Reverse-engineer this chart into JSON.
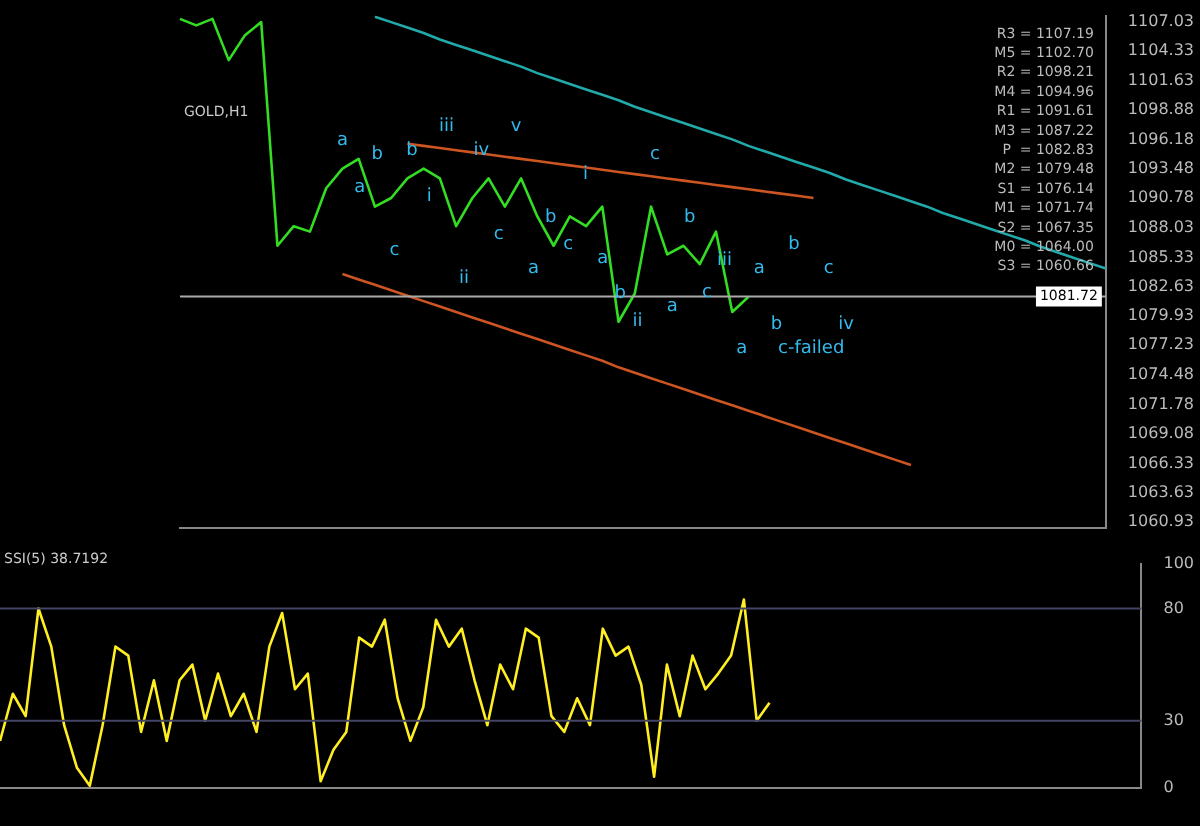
{
  "chart_data": [
    {
      "type": "line",
      "title": "GOLD,H1",
      "ylim": [
        1060.4,
        1107.6
      ],
      "tick_labels": "y",
      "legend": false,
      "marker": "none",
      "line_style": "solid",
      "categories": [
        null,
        null,
        null,
        null,
        null,
        null,
        null,
        null,
        null,
        null,
        null,
        null,
        null,
        null,
        null,
        null,
        null,
        null,
        null,
        null,
        null,
        null,
        null,
        null,
        null,
        null,
        null,
        null,
        null,
        null,
        null,
        null,
        null,
        null,
        null,
        null,
        null,
        null,
        null,
        null,
        null,
        null,
        null,
        null,
        null,
        null,
        null,
        null,
        null,
        null,
        null,
        null,
        null,
        null,
        null,
        null,
        null,
        null
      ],
      "yticks": [
        1107.03,
        1104.33,
        1101.63,
        1098.88,
        1096.18,
        1093.48,
        1090.78,
        1088.03,
        1085.33,
        1082.63,
        1079.93,
        1077.23,
        1074.48,
        1071.78,
        1069.08,
        1066.33,
        1063.63,
        1060.93
      ],
      "series": [
        {
          "color": "#33dd22",
          "values": [
            1107.3,
            1106.7,
            1107.3,
            1103.5,
            1105.8,
            1107.0,
            1086.4,
            1088.2,
            1087.7,
            1091.7,
            1093.5,
            1094.4,
            1090.0,
            1090.8,
            1092.6,
            1093.5,
            1092.6,
            1088.2,
            1090.8,
            1092.6,
            1090.0,
            1092.6,
            1089.1,
            1086.4,
            1089.1,
            1088.2,
            1090.0,
            1079.4,
            1082.0,
            1090.0,
            1085.6,
            1086.4,
            1084.7,
            1087.7,
            1080.3,
            1081.7,
            null,
            null,
            null,
            null,
            null,
            null,
            null,
            null,
            null,
            null,
            null,
            null,
            null,
            null,
            null,
            null,
            null,
            null,
            null,
            null,
            null,
            null
          ]
        },
        {
          "color": "#cc5522",
          "values": [
            null,
            null,
            null,
            null,
            null,
            null,
            null,
            null,
            null,
            null,
            1083.8,
            1083.3,
            1082.8,
            1082.3,
            1081.8,
            1081.3,
            1080.8,
            1080.3,
            1079.8,
            1079.3,
            1078.8,
            1078.3,
            1077.8,
            1077.3,
            1076.8,
            1076.3,
            1075.8,
            1075.2,
            1074.7,
            1074.2,
            1073.7,
            1073.2,
            1072.7,
            1072.2,
            1071.7,
            1071.2,
            1070.7,
            1070.2,
            1069.7,
            1069.2,
            1068.7,
            1068.2,
            1067.7,
            1067.2,
            1066.7,
            1066.2,
            null,
            null,
            null,
            null,
            null,
            null,
            null,
            null,
            null,
            null,
            null,
            null
          ]
        },
        {
          "color": "#cc5522",
          "values": [
            null,
            null,
            null,
            null,
            null,
            null,
            null,
            null,
            null,
            null,
            null,
            null,
            null,
            null,
            1095.8,
            1095.6,
            1095.4,
            1095.2,
            1095.0,
            1094.8,
            1094.6,
            1094.4,
            1094.2,
            1094.0,
            1093.8,
            1093.6,
            1093.4,
            1093.2,
            1093.0,
            1092.8,
            1092.6,
            1092.4,
            1092.2,
            1092.0,
            1091.8,
            1091.6,
            1091.4,
            1091.2,
            1091.0,
            1090.8,
            null,
            null,
            null,
            null,
            null,
            null,
            null,
            null,
            null,
            null,
            null,
            null,
            null,
            null,
            null,
            null,
            null,
            null
          ]
        },
        {
          "color": "#22aaaa",
          "values": [
            null,
            null,
            null,
            null,
            null,
            null,
            null,
            null,
            null,
            null,
            null,
            null,
            1107.5,
            1107.0,
            1106.5,
            1106.0,
            1105.4,
            1104.9,
            1104.4,
            1103.9,
            1103.4,
            1102.9,
            1102.3,
            1101.8,
            1101.3,
            1100.8,
            1100.3,
            1099.8,
            1099.2,
            1098.7,
            1098.2,
            1097.7,
            1097.2,
            1096.7,
            1096.2,
            1095.6,
            1095.1,
            1094.6,
            1094.1,
            1093.6,
            1093.1,
            1092.5,
            1092.0,
            1091.5,
            1091.0,
            1090.5,
            1090.0,
            1089.4,
            1088.9,
            1088.4,
            1087.9,
            1087.4,
            1086.9,
            1086.3,
            1085.8,
            1085.3,
            1084.8,
            1084.3
          ]
        }
      ],
      "ref_lines": [
        {
          "axis": "y",
          "value": 1081.72,
          "label": "1081.72",
          "color": "#aaaaaa"
        }
      ],
      "annotations": [
        "R3 = 1107.19",
        "M5 = 1102.70",
        "R2 = 1098.21",
        "M4 = 1094.96",
        "R1 = 1091.61",
        "M3 = 1087.22",
        "P  = 1082.83",
        "M2 = 1079.48",
        "S1 = 1076.14",
        "M1 = 1071.74",
        "S2 = 1067.35",
        "M0 = 1064.00",
        "S3 = 1060.66",
        "a",
        "a",
        "b",
        "c",
        "b",
        "i",
        "iii",
        "ii",
        "iv",
        "c",
        "v",
        "a",
        "b",
        "c",
        "i",
        "a",
        "b",
        "ii",
        "c",
        "a",
        "b",
        "c",
        "iii",
        "a",
        "a",
        "b",
        "b",
        "c-failed",
        "c",
        "iv"
      ]
    },
    {
      "type": "line",
      "title": "SSI(5) 38.7192",
      "ylim": [
        0,
        100
      ],
      "yticks": [
        0,
        30,
        80,
        100
      ],
      "tick_labels": "y",
      "legend": false,
      "marker": "none",
      "line_style": "solid",
      "categories": [
        null,
        null,
        null,
        null,
        null,
        null,
        null,
        null,
        null,
        null,
        null,
        null,
        null,
        null,
        null,
        null,
        null,
        null,
        null,
        null,
        null,
        null,
        null,
        null,
        null,
        null,
        null,
        null,
        null,
        null,
        null,
        null,
        null,
        null,
        null,
        null,
        null,
        null,
        null,
        null,
        null,
        null,
        null,
        null,
        null,
        null,
        null,
        null,
        null,
        null,
        null,
        null,
        null,
        null,
        null,
        null,
        null,
        null,
        null,
        null,
        null,
        null,
        null,
        null,
        null,
        null,
        null,
        null,
        null,
        null,
        null,
        null,
        null,
        null,
        null,
        null,
        null,
        null,
        null,
        null,
        null,
        null,
        null,
        null,
        null,
        null,
        null,
        null,
        null,
        null
      ],
      "ref_lines": [
        {
          "axis": "y",
          "value": 80,
          "color": "#444466"
        },
        {
          "axis": "y",
          "value": 30,
          "color": "#444466"
        }
      ],
      "series": [
        {
          "color": "#ffee22",
          "values": [
            21,
            42,
            32,
            80,
            63,
            28,
            9,
            1,
            28,
            63,
            59,
            25,
            48,
            21,
            48,
            55,
            30,
            51,
            32,
            42,
            25,
            63,
            78,
            44,
            51,
            3,
            17,
            25,
            67,
            63,
            75,
            40,
            21,
            36,
            75,
            63,
            71,
            48,
            28,
            55,
            44,
            71,
            67,
            32,
            25,
            40,
            28,
            71,
            59,
            63,
            46,
            5,
            55,
            32,
            59,
            44,
            51,
            59,
            84,
            30,
            38,
            null,
            null,
            null,
            null,
            null,
            null,
            null,
            null,
            null,
            null,
            null,
            null,
            null,
            null,
            null,
            null,
            null,
            null,
            null,
            null,
            null,
            null,
            null,
            null,
            null,
            null,
            null,
            null,
            null
          ]
        }
      ]
    }
  ]
}
